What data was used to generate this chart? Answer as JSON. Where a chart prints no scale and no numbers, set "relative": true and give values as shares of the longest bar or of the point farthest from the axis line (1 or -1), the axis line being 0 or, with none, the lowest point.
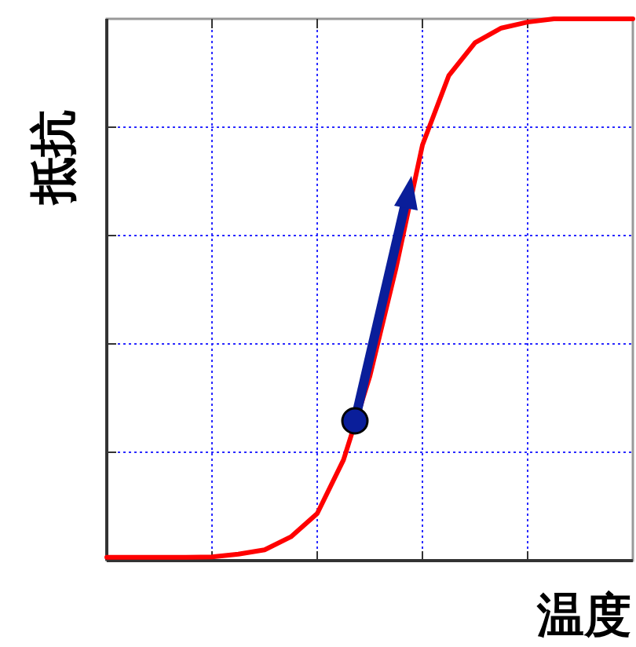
{
  "chart_data": {
    "type": "line",
    "relative": true,
    "xlabel": "温度",
    "ylabel": "抵抗",
    "categories": [
      null,
      null,
      null,
      null,
      null,
      null,
      null,
      null,
      null,
      null,
      null,
      null,
      null,
      null,
      null,
      null,
      null,
      null,
      null,
      null,
      null
    ],
    "series": [
      {
        "color": "#ff0000",
        "values": [
          0.006,
          0.006,
          0.006,
          0.006,
          0.007,
          0.012,
          0.02,
          0.044,
          0.087,
          0.186,
          0.34,
          0.541,
          0.767,
          0.895,
          0.956,
          0.983,
          0.994,
          1,
          1,
          1,
          1
        ]
      }
    ],
    "grid": true
  }
}
